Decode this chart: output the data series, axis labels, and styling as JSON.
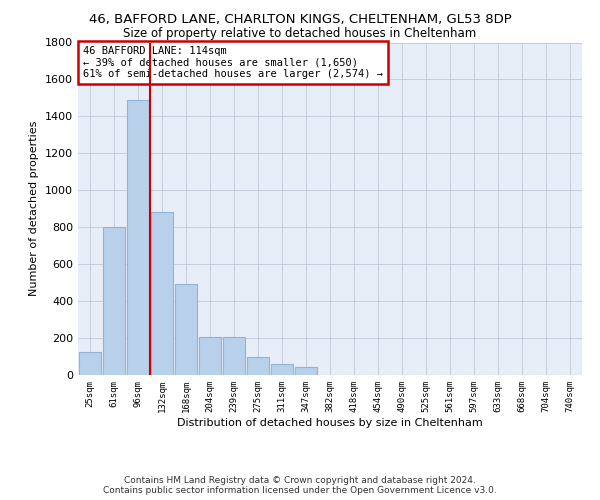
{
  "title_line1": "46, BAFFORD LANE, CHARLTON KINGS, CHELTENHAM, GL53 8DP",
  "title_line2": "Size of property relative to detached houses in Cheltenham",
  "xlabel": "Distribution of detached houses by size in Cheltenham",
  "ylabel": "Number of detached properties",
  "footer": "Contains HM Land Registry data © Crown copyright and database right 2024.\nContains public sector information licensed under the Open Government Licence v3.0.",
  "bin_labels": [
    "25sqm",
    "61sqm",
    "96sqm",
    "132sqm",
    "168sqm",
    "204sqm",
    "239sqm",
    "275sqm",
    "311sqm",
    "347sqm",
    "382sqm",
    "418sqm",
    "454sqm",
    "490sqm",
    "525sqm",
    "561sqm",
    "597sqm",
    "633sqm",
    "668sqm",
    "704sqm",
    "740sqm"
  ],
  "bar_values": [
    125,
    800,
    1490,
    880,
    490,
    205,
    205,
    100,
    60,
    45,
    0,
    0,
    0,
    0,
    0,
    0,
    0,
    0,
    0,
    0,
    0
  ],
  "bar_color": "#b8d0ea",
  "bar_edgecolor": "#90b4d8",
  "annotation_text": "46 BAFFORD LANE: 114sqm\n← 39% of detached houses are smaller (1,650)\n61% of semi-detached houses are larger (2,574) →",
  "annotation_box_color": "#ffffff",
  "annotation_box_edgecolor": "#cc0000",
  "vline_color": "#cc0000",
  "ylim": [
    0,
    1800
  ],
  "yticks": [
    0,
    200,
    400,
    600,
    800,
    1000,
    1200,
    1400,
    1600,
    1800
  ],
  "background_color": "#e8eef8",
  "grid_color": "#c0c8d8",
  "title_fontsize": 9.5,
  "subtitle_fontsize": 8.5,
  "footer_fontsize": 6.5
}
